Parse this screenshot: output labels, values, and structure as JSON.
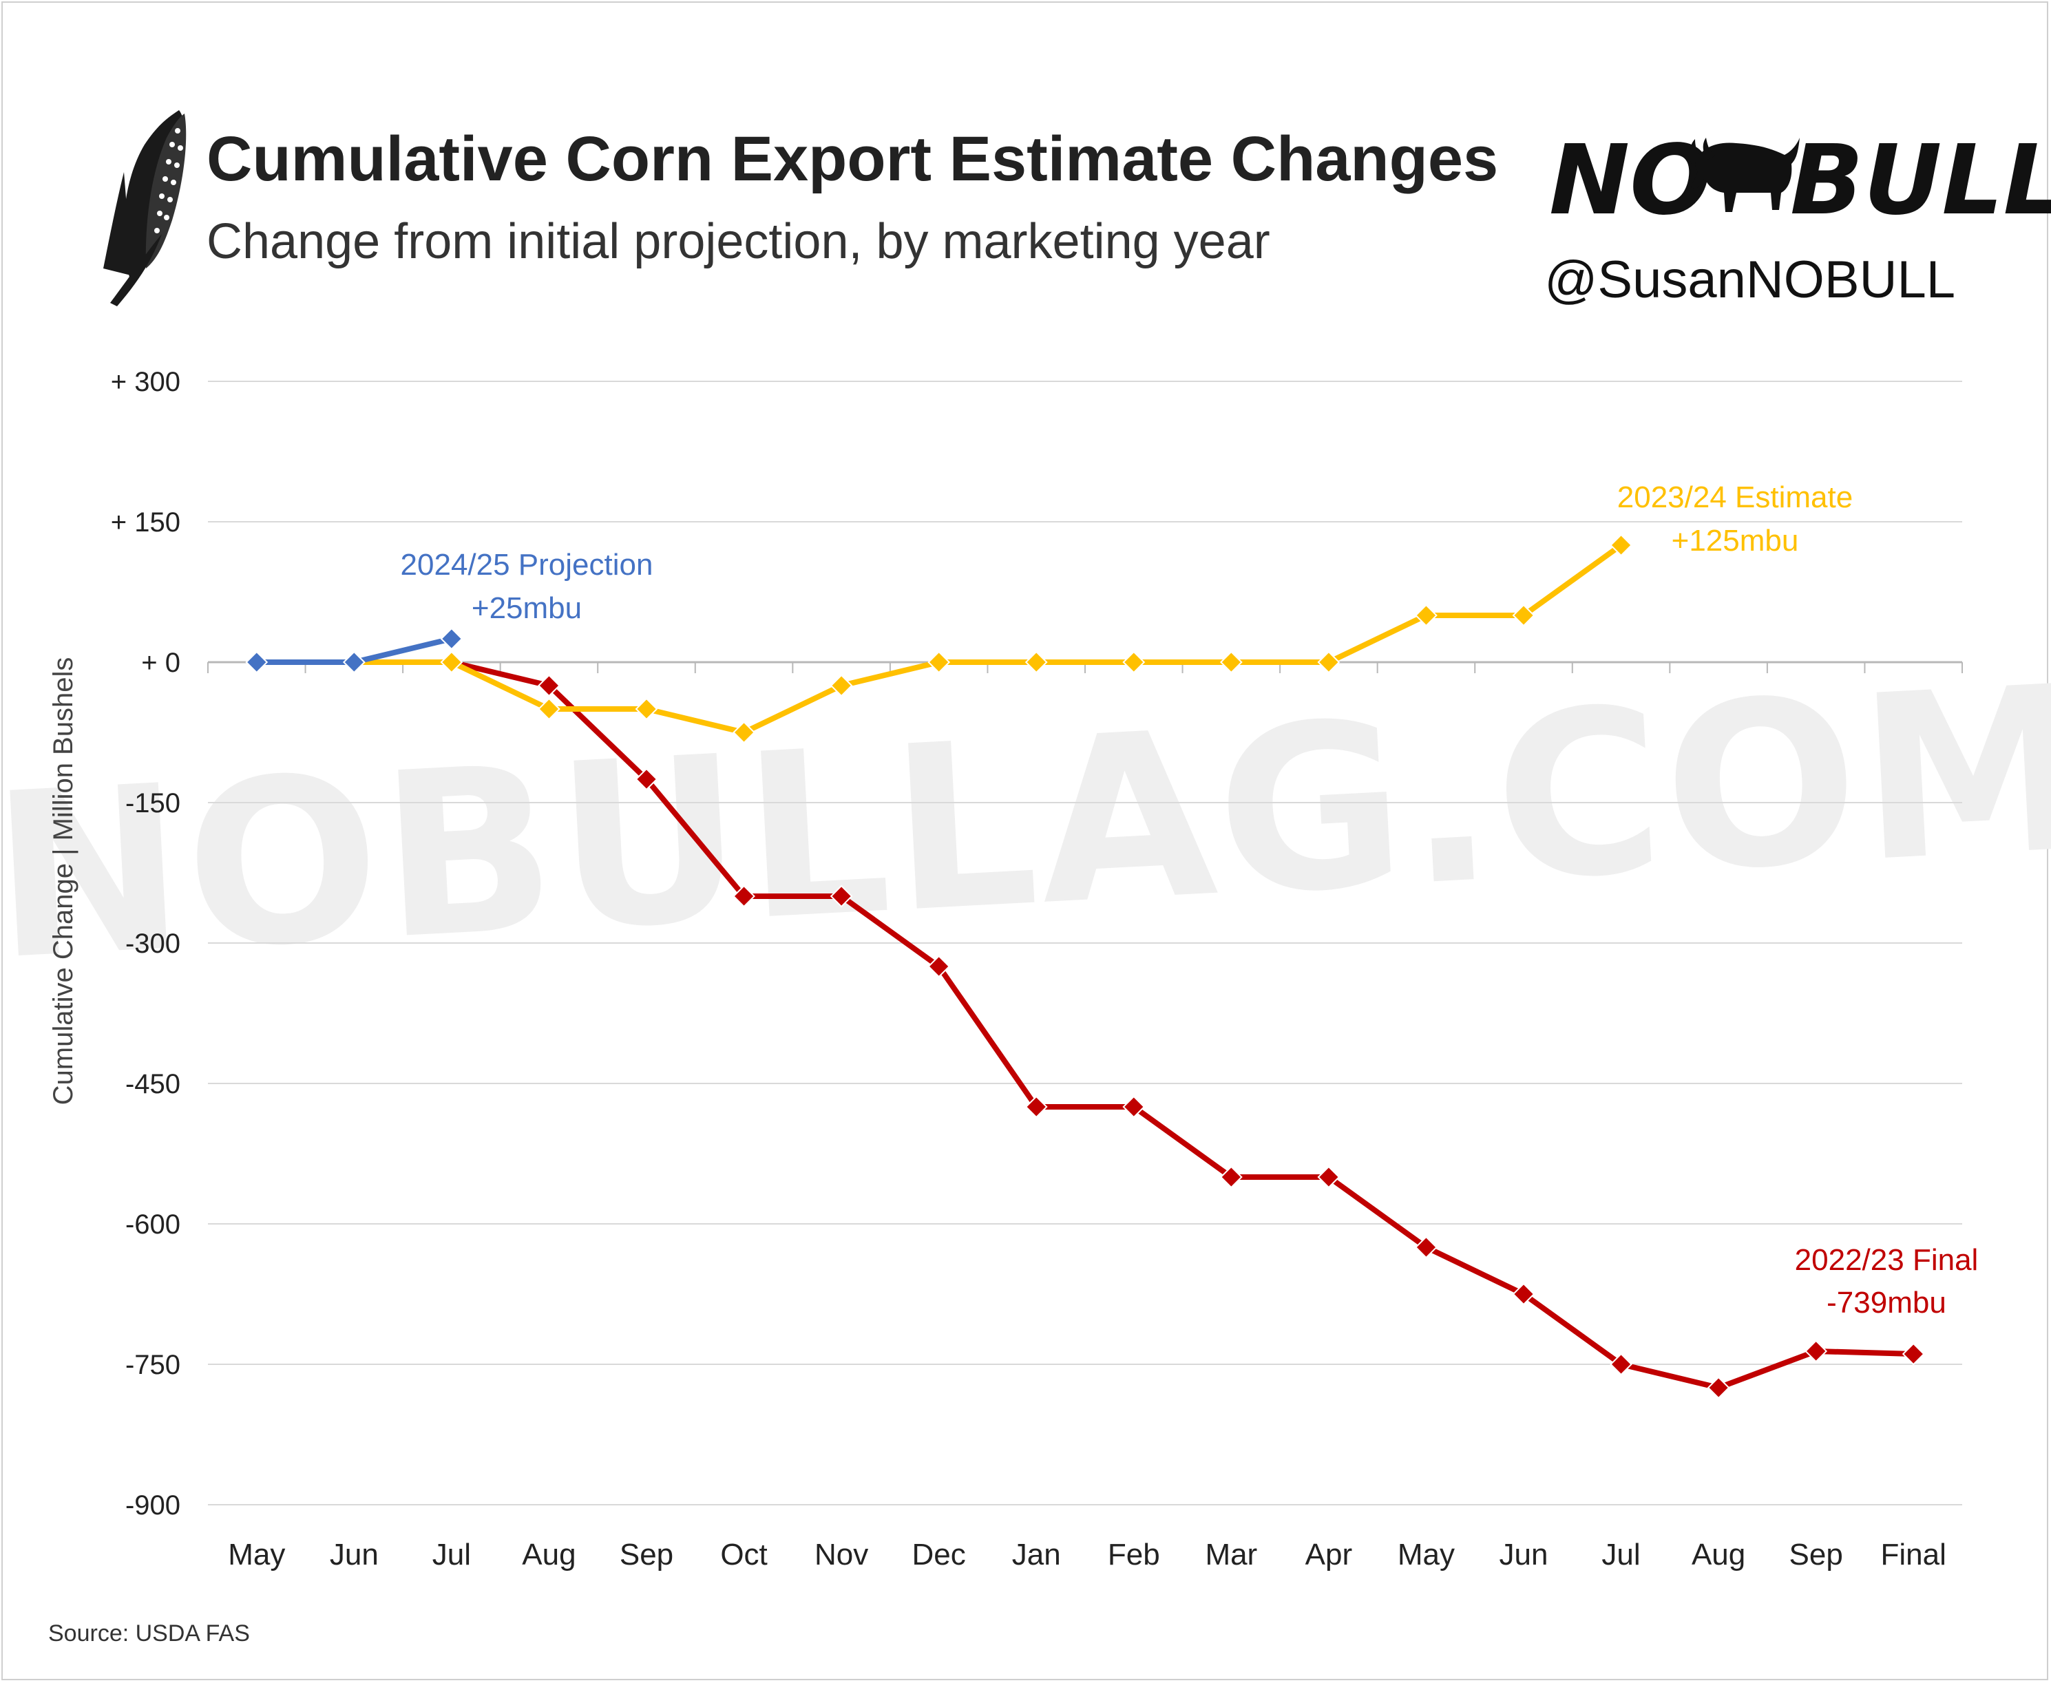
{
  "header": {
    "title": "Cumulative Corn Export Estimate Changes",
    "subtitle": "Change from initial projection, by marketing year"
  },
  "brand": {
    "logo_no": "NO",
    "logo_bull": "BULL",
    "handle": "@SusanNOBULL",
    "watermark": "NOBULLAG.COM",
    "icon": "corn-icon",
    "bull_icon": "bull-icon"
  },
  "source": "Source: USDA FAS",
  "chart_data": {
    "type": "line",
    "ylabel": "Cumulative Change | Million Bushels",
    "xlabel": "",
    "categories": [
      "May",
      "Jun",
      "Jul",
      "Aug",
      "Sep",
      "Oct",
      "Nov",
      "Dec",
      "Jan",
      "Feb",
      "Mar",
      "Apr",
      "May",
      "Jun",
      "Jul",
      "Aug",
      "Sep",
      "Final"
    ],
    "ylim": [
      -900,
      300
    ],
    "y_ticks": [
      300,
      150,
      0,
      -150,
      -300,
      -450,
      -600,
      -750,
      -900
    ],
    "y_tick_labels": [
      "+ 300",
      "+ 150",
      "+ 0",
      "-150",
      "-300",
      "-450",
      "-600",
      "-750",
      "-900"
    ],
    "grid": true,
    "series": [
      {
        "name": "2022/23",
        "color": "#c00000",
        "values": [
          null,
          null,
          0,
          -25,
          -125,
          -250,
          -250,
          -325,
          -475,
          -475,
          -550,
          -550,
          -625,
          -675,
          -750,
          -775,
          -736,
          -739
        ],
        "annotation": [
          "2022/23 Final",
          "-739mbu"
        ]
      },
      {
        "name": "2023/24",
        "color": "#ffc000",
        "values": [
          null,
          0,
          0,
          -50,
          -50,
          -75,
          -25,
          0,
          0,
          0,
          0,
          0,
          50,
          50,
          125,
          null,
          null,
          null
        ],
        "annotation": [
          "2023/24 Estimate",
          "+125mbu"
        ]
      },
      {
        "name": "2024/25",
        "color": "#4472c4",
        "values": [
          0,
          0,
          25,
          null,
          null,
          null,
          null,
          null,
          null,
          null,
          null,
          null,
          null,
          null,
          null,
          null,
          null,
          null
        ],
        "annotation": [
          "2024/25 Projection",
          "+25mbu"
        ]
      }
    ]
  }
}
